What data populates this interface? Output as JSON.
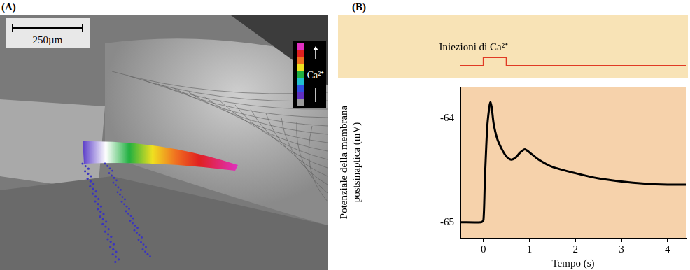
{
  "panel_a": {
    "label": "(A)",
    "scale_bar": "250µm",
    "colorbar_label": "Ca²⁺"
  },
  "panel_b": {
    "label": "(B)"
  },
  "chart_data": [
    {
      "type": "line",
      "annotation": "Iniezioni di Ca²⁺",
      "x": [
        -0.5,
        0,
        0,
        0.5,
        0.5,
        4.4
      ],
      "values": [
        0,
        0,
        1,
        1,
        0,
        0
      ],
      "color": "#e03a24",
      "xlim": [
        -0.5,
        4.4
      ],
      "ylim": [
        -1.5,
        6
      ],
      "grid": false,
      "tick_labels": false
    },
    {
      "type": "line",
      "x_label": "Tempo (s)",
      "y_label": [
        "Potenziale della membrana",
        "postsinaptica (mV)"
      ],
      "x": [
        -0.5,
        -0.05,
        0,
        0.03,
        0.08,
        0.12,
        0.15,
        0.18,
        0.22,
        0.3,
        0.4,
        0.5,
        0.6,
        0.7,
        0.8,
        0.9,
        1.0,
        1.2,
        1.5,
        2.0,
        2.5,
        3.0,
        3.5,
        4.0,
        4.4
      ],
      "values": [
        -65.0,
        -65.0,
        -64.98,
        -64.6,
        -64.1,
        -63.92,
        -63.85,
        -63.9,
        -64.05,
        -64.2,
        -64.3,
        -64.37,
        -64.4,
        -64.38,
        -64.33,
        -64.3,
        -64.33,
        -64.4,
        -64.47,
        -64.53,
        -64.58,
        -64.61,
        -64.63,
        -64.64,
        -64.64
      ],
      "color": "#000000",
      "xlim": [
        -0.5,
        4.4
      ],
      "xticks": [
        0,
        1,
        2,
        3,
        4
      ],
      "ylim": [
        -65.15,
        -63.7
      ],
      "yticks": [
        -65,
        -64
      ],
      "grid": false
    }
  ]
}
